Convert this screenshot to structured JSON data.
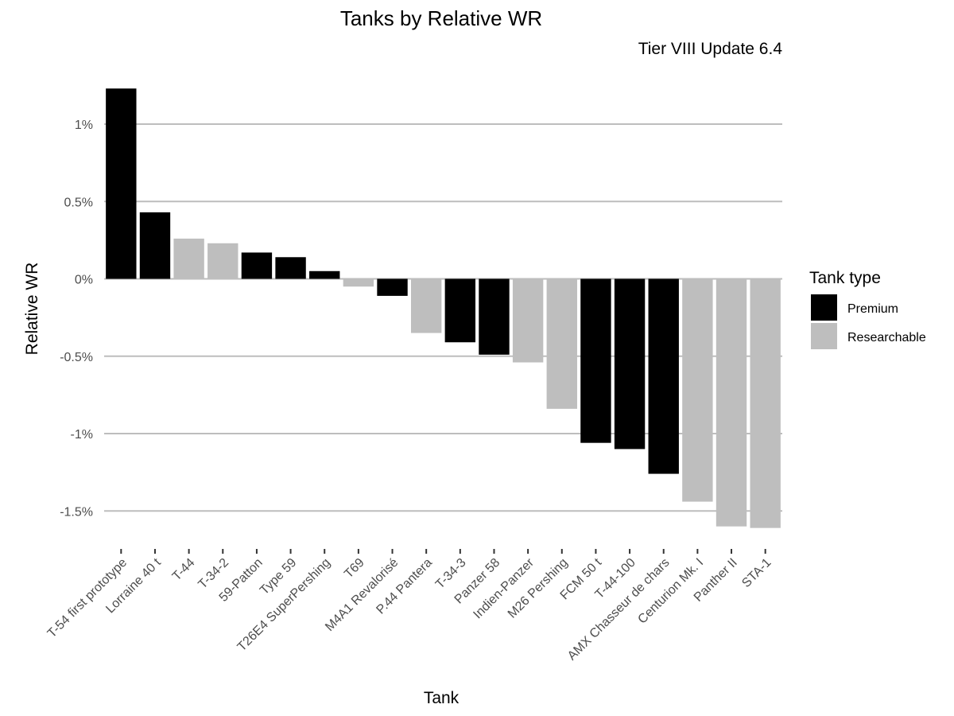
{
  "chart_data": {
    "type": "bar",
    "title": "Tanks by Relative WR",
    "subtitle": "Tier VIII Update 6.4",
    "xlabel": "Tank",
    "ylabel": "Relative WR",
    "ylim": [
      -1.7,
      1.25
    ],
    "y_ticks": [
      1,
      0.5,
      0,
      -0.5,
      -1,
      -1.5
    ],
    "y_tick_labels": [
      "1%",
      "0.5%",
      "0%",
      "-0.5%",
      "-1%",
      "-1.5%"
    ],
    "y_unit": "%",
    "grid": true,
    "legend": {
      "title": "Tank type",
      "position": "right",
      "items": [
        {
          "label": "Premium",
          "color": "#000000"
        },
        {
          "label": "Researchable",
          "color": "#bebebe"
        }
      ]
    },
    "categories": [
      "T-54 first prototype",
      "Lorraine 40 t",
      "T-44",
      "T-34-2",
      "59-Patton",
      "Type 59",
      "T26E4 SuperPershing",
      "T69",
      "M4A1 Revalorisé",
      "P.44 Pantera",
      "T-34-3",
      "Panzer 58",
      "Indien-Panzer",
      "M26 Pershing",
      "FCM 50 t",
      "T-44-100",
      "AMX Chasseur de chars",
      "Centurion Mk. I",
      "Panther II",
      "STA-1"
    ],
    "values": [
      1.23,
      0.43,
      0.26,
      0.23,
      0.17,
      0.14,
      0.05,
      -0.05,
      -0.11,
      -0.35,
      -0.41,
      -0.49,
      -0.54,
      -0.84,
      -1.06,
      -1.1,
      -1.26,
      -1.44,
      -1.6,
      -1.61
    ],
    "tank_type": [
      "Premium",
      "Premium",
      "Researchable",
      "Researchable",
      "Premium",
      "Premium",
      "Premium",
      "Researchable",
      "Premium",
      "Researchable",
      "Premium",
      "Premium",
      "Researchable",
      "Researchable",
      "Premium",
      "Premium",
      "Premium",
      "Researchable",
      "Researchable",
      "Researchable"
    ]
  }
}
